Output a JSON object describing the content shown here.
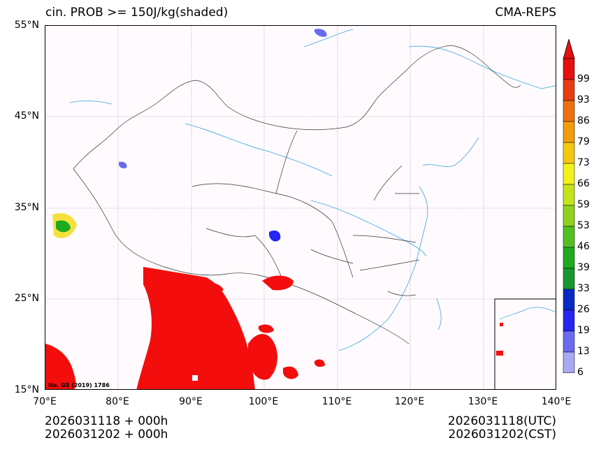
{
  "title": {
    "left": "cin. PROB >= 150J/kg(shaded)",
    "right": "CMA-REPS"
  },
  "axes": {
    "lat_labels": [
      "55°N",
      "45°N",
      "35°N",
      "25°N",
      "15°N"
    ],
    "lon_labels": [
      "70°E",
      "80°E",
      "90°E",
      "100°E",
      "110°E",
      "120°E",
      "130°E",
      "140°E"
    ]
  },
  "colorbar": {
    "levels": [
      "6",
      "13",
      "19",
      "26",
      "33",
      "39",
      "46",
      "53",
      "59",
      "66",
      "73",
      "79",
      "86",
      "93",
      "99"
    ],
    "colors": [
      "#a9a9f5",
      "#6b6bf0",
      "#2626f2",
      "#0a2ac4",
      "#17982e",
      "#1fab1f",
      "#52bf22",
      "#8fd11e",
      "#c5e31a",
      "#f2f21a",
      "#f5c80f",
      "#f29c0c",
      "#ee7010",
      "#e83c10",
      "#e61010"
    ],
    "top_arrow_color": "#e60f0f",
    "bottom_arrow_color": "#ffffff"
  },
  "map_note": "No. GS (2019) 1786",
  "footer": {
    "init_line1": "2026031118  +  000h",
    "init_line2": "2026031202  +  000h",
    "valid_line1": "2026031118(UTC)",
    "valid_line2": "2026031202(CST)"
  }
}
